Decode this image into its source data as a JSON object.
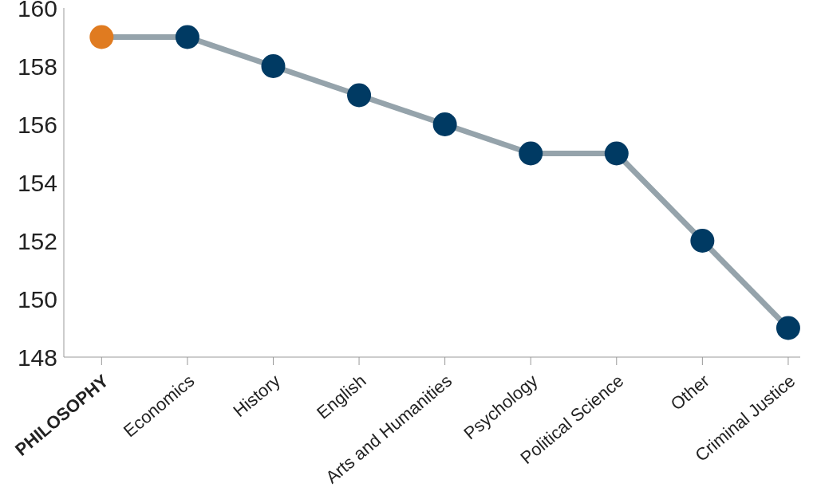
{
  "chart_data": {
    "type": "line",
    "categories": [
      "PHILOSOPHY",
      "Economics",
      "History",
      "English",
      "Arts and Humanities",
      "Psychology",
      "Political Science",
      "Other",
      "Criminal Justice"
    ],
    "series": [
      {
        "color": "#95a3ab",
        "colors": [
          "#e07b20",
          "#003a63",
          "#003a63",
          "#003a63",
          "#003a63",
          "#003a63",
          "#003a63",
          "#003a63",
          "#003a63"
        ],
        "values": [
          159,
          159,
          158,
          157,
          156,
          155,
          155,
          152,
          149
        ]
      }
    ],
    "ylim": [
      148,
      160
    ],
    "yticks": [
      148,
      150,
      152,
      154,
      156,
      158,
      160
    ],
    "grid": false,
    "legend": false,
    "marker": "circle",
    "line_style": "solid"
  }
}
